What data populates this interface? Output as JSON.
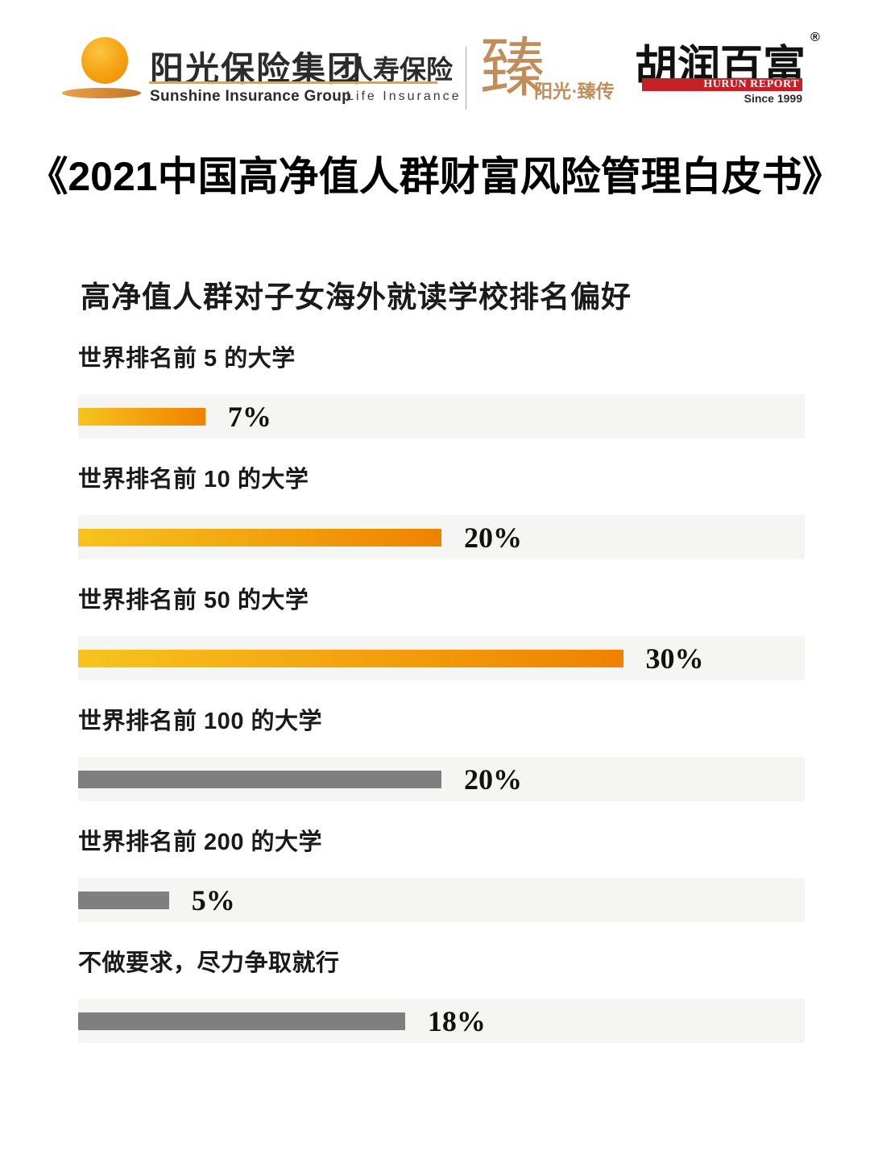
{
  "header": {
    "sunshine": {
      "name_cn": "阳光保险集团",
      "sub_cn": "人寿保险",
      "name_en": "Sunshine Insurance Group",
      "sub_en": "Life Insurance"
    },
    "zhen": {
      "seal_char": "臻",
      "label": "阳光·臻传"
    },
    "hurun": {
      "name_cn": "胡润百富",
      "reg_mark": "®",
      "name_en": "HURUN REPORT",
      "since": "Since 1999"
    }
  },
  "report_title": "《2021中国高净值人群财富风险管理白皮书》",
  "chart_data": {
    "type": "bar",
    "orientation": "horizontal",
    "title": "高净值人群对子女海外就读学校排名偏好",
    "categories": [
      "世界排名前 5 的大学",
      "世界排名前 10 的大学",
      "世界排名前 50 的大学",
      "世界排名前 100 的大学",
      "世界排名前 200 的大学",
      "不做要求，尽力争取就行"
    ],
    "values": [
      7,
      20,
      30,
      20,
      5,
      18
    ],
    "value_labels": [
      "7%",
      "20%",
      "30%",
      "20%",
      "5%",
      "18%"
    ],
    "bar_styles": [
      "orange",
      "orange",
      "orange",
      "gray",
      "gray",
      "gray"
    ],
    "xlim": [
      0,
      40
    ],
    "grid": false,
    "legend": "none",
    "colors": {
      "orange_start": "#F6C41E",
      "orange_end": "#EF8200",
      "gray": "#7F7F7F",
      "track": "#F5F5F3",
      "hurun_red": "#C42127",
      "gold": "#C08E5A"
    }
  }
}
